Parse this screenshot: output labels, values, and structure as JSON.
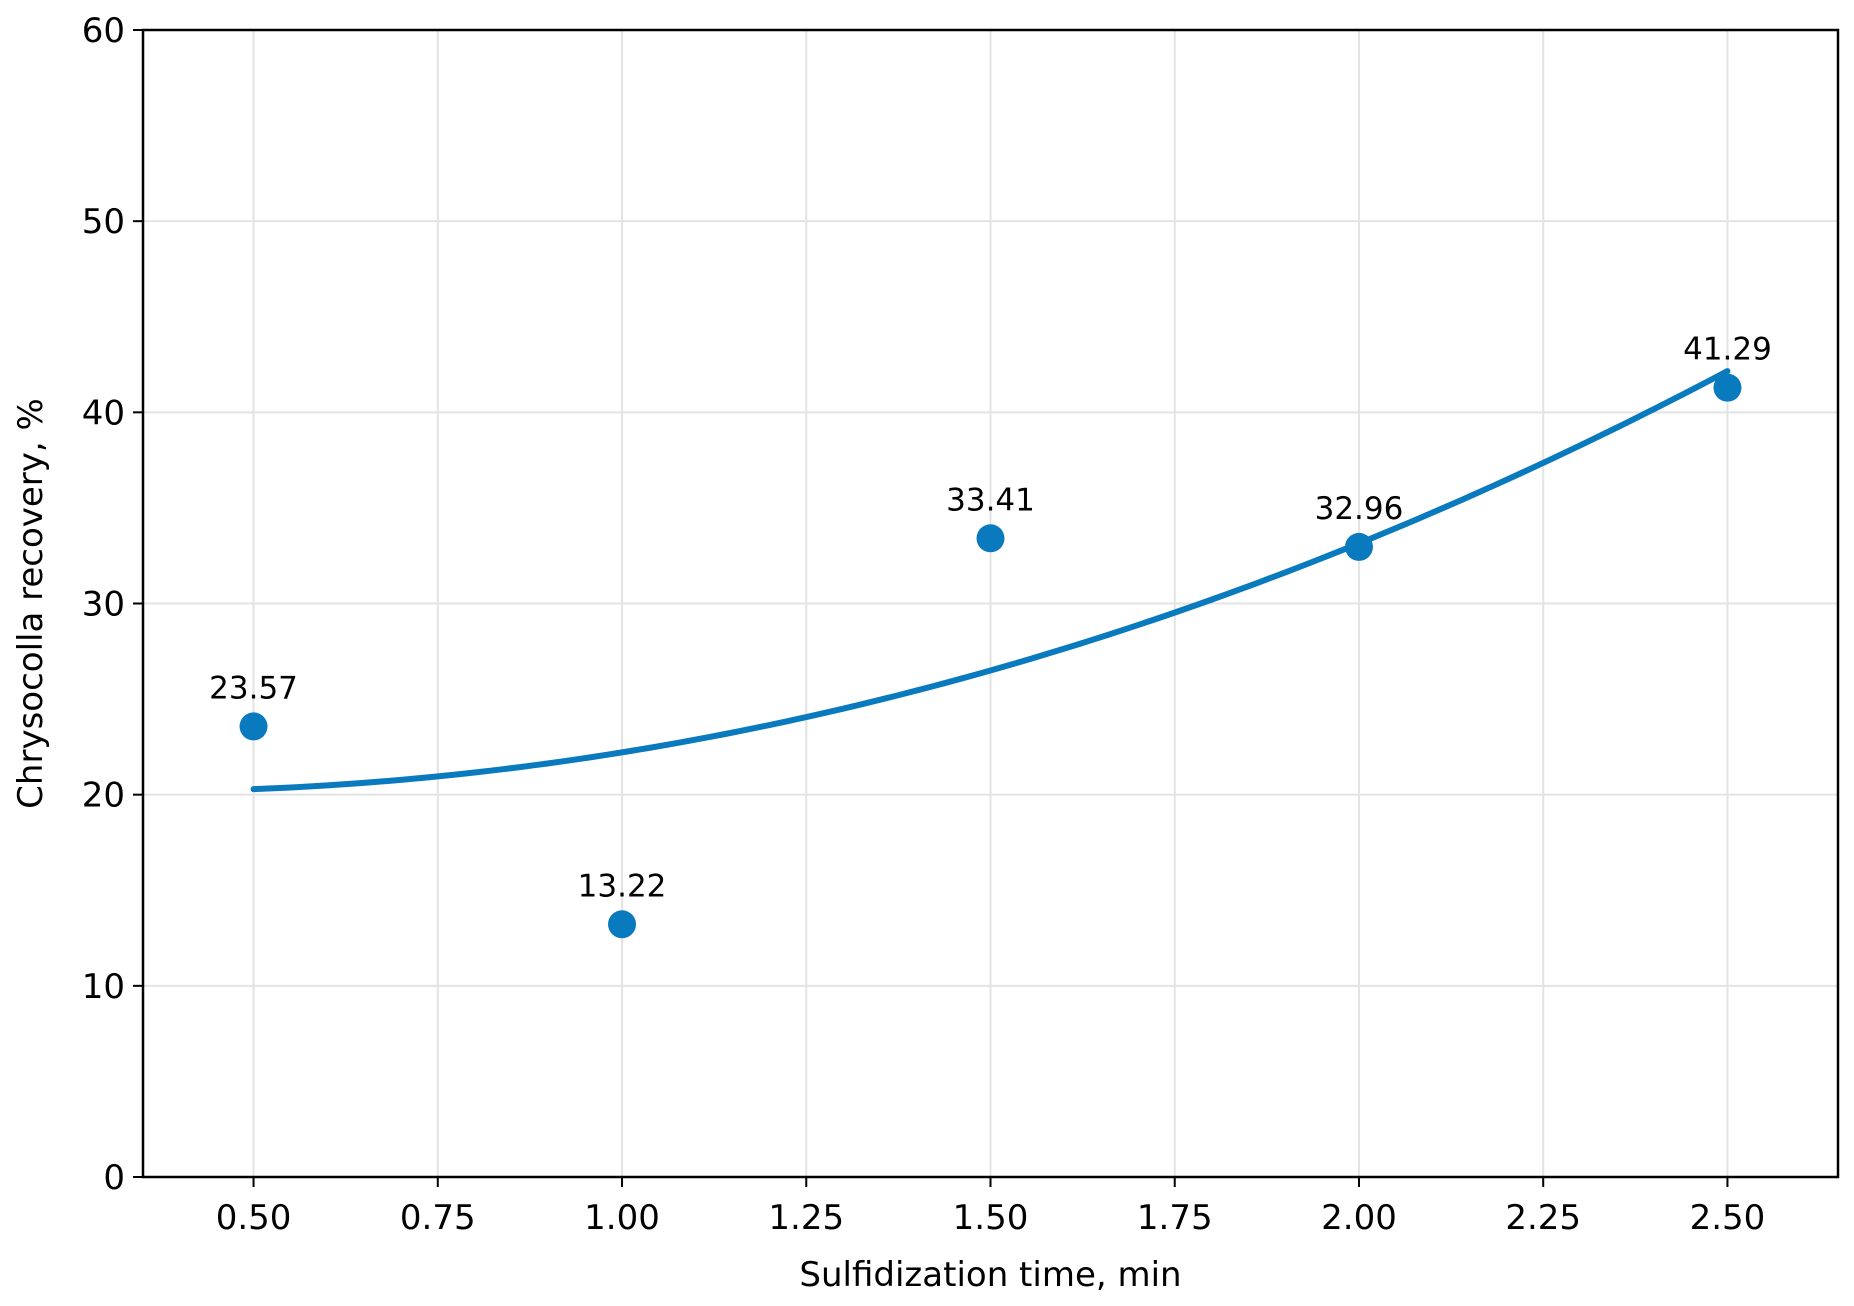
{
  "chart_data": {
    "type": "scatter",
    "title": "",
    "xlabel": "Sulfidization time, min",
    "ylabel": "Chrysocolla recovery, %",
    "xlim": [
      0.35,
      2.65
    ],
    "ylim": [
      0,
      60
    ],
    "xticks": [
      "0.50",
      "0.75",
      "1.00",
      "1.25",
      "1.50",
      "1.75",
      "2.00",
      "2.25",
      "2.50"
    ],
    "yticks": [
      "0",
      "10",
      "20",
      "30",
      "40",
      "50",
      "60"
    ],
    "grid": true,
    "series": [
      {
        "type": "scatter",
        "x": [
          0.5,
          1.0,
          1.5,
          2.0,
          2.5
        ],
        "y": [
          23.57,
          13.22,
          33.41,
          32.96,
          41.29
        ],
        "labels": [
          "23.57",
          "13.22",
          "33.41",
          "32.96",
          "41.29"
        ],
        "color": "#0a7abf"
      },
      {
        "type": "line",
        "x": [
          0.5,
          0.75,
          1.0,
          1.25,
          1.5,
          1.75,
          2.0,
          2.25,
          2.5
        ],
        "y": [
          20.3,
          20.9,
          22.2,
          24.1,
          26.6,
          29.6,
          33.0,
          37.2,
          42.3
        ],
        "color": "#0a7abf"
      }
    ]
  }
}
